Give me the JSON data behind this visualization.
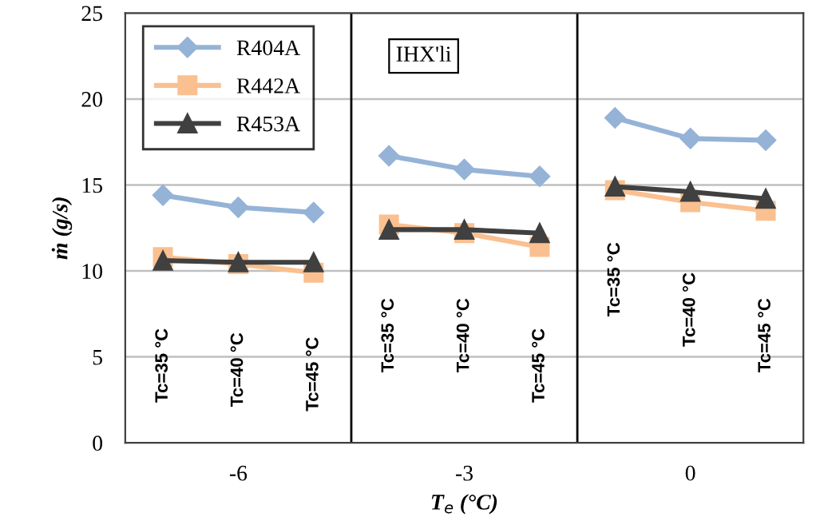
{
  "chart_data": {
    "type": "line",
    "xlabel": "T$_{e}$ (°C)",
    "ylabel": "ṁ (g/s)",
    "x": [
      -7,
      -6,
      -5,
      -4.5,
      -4,
      -3,
      -2,
      -1.5,
      -1,
      0,
      1
    ],
    "xlim": [
      -7.5,
      1.5
    ],
    "xticks": [
      -6,
      -3,
      0
    ],
    "ylim": [
      0,
      25
    ],
    "yticks": [
      0,
      5,
      10,
      15,
      20,
      25
    ],
    "grid": "y",
    "legend": "top left",
    "series": [
      {
        "name": "R404A",
        "color": "#95b3d7",
        "marker": "diamond",
        "values": [
          14.4,
          13.7,
          13.4,
          null,
          16.7,
          15.9,
          15.5,
          null,
          18.9,
          17.7,
          17.6
        ]
      },
      {
        "name": "R442A",
        "color": "#fac090",
        "marker": "square",
        "values": [
          10.8,
          10.4,
          9.9,
          null,
          12.7,
          12.2,
          11.4,
          null,
          14.7,
          14.0,
          13.5
        ]
      },
      {
        "name": "R453A",
        "color": "#404040",
        "marker": "triangle",
        "values": [
          10.6,
          10.5,
          10.5,
          null,
          12.4,
          12.4,
          12.2,
          null,
          14.9,
          14.6,
          14.2
        ]
      }
    ],
    "ref_lines": [
      {
        "axis": "x",
        "value": -4.5,
        "color": "#000000"
      },
      {
        "axis": "x",
        "value": -1.5,
        "color": "#000000"
      }
    ],
    "annotations": [
      "IHX'li",
      "Tc=35 °C",
      "Tc=40 °C",
      "Tc=45 °C",
      "Tc=35 °C",
      "Tc=40 °C",
      "Tc=45 °C",
      "Tc=35 °C",
      "Tc=40 °C",
      "Tc=45 °C"
    ]
  }
}
